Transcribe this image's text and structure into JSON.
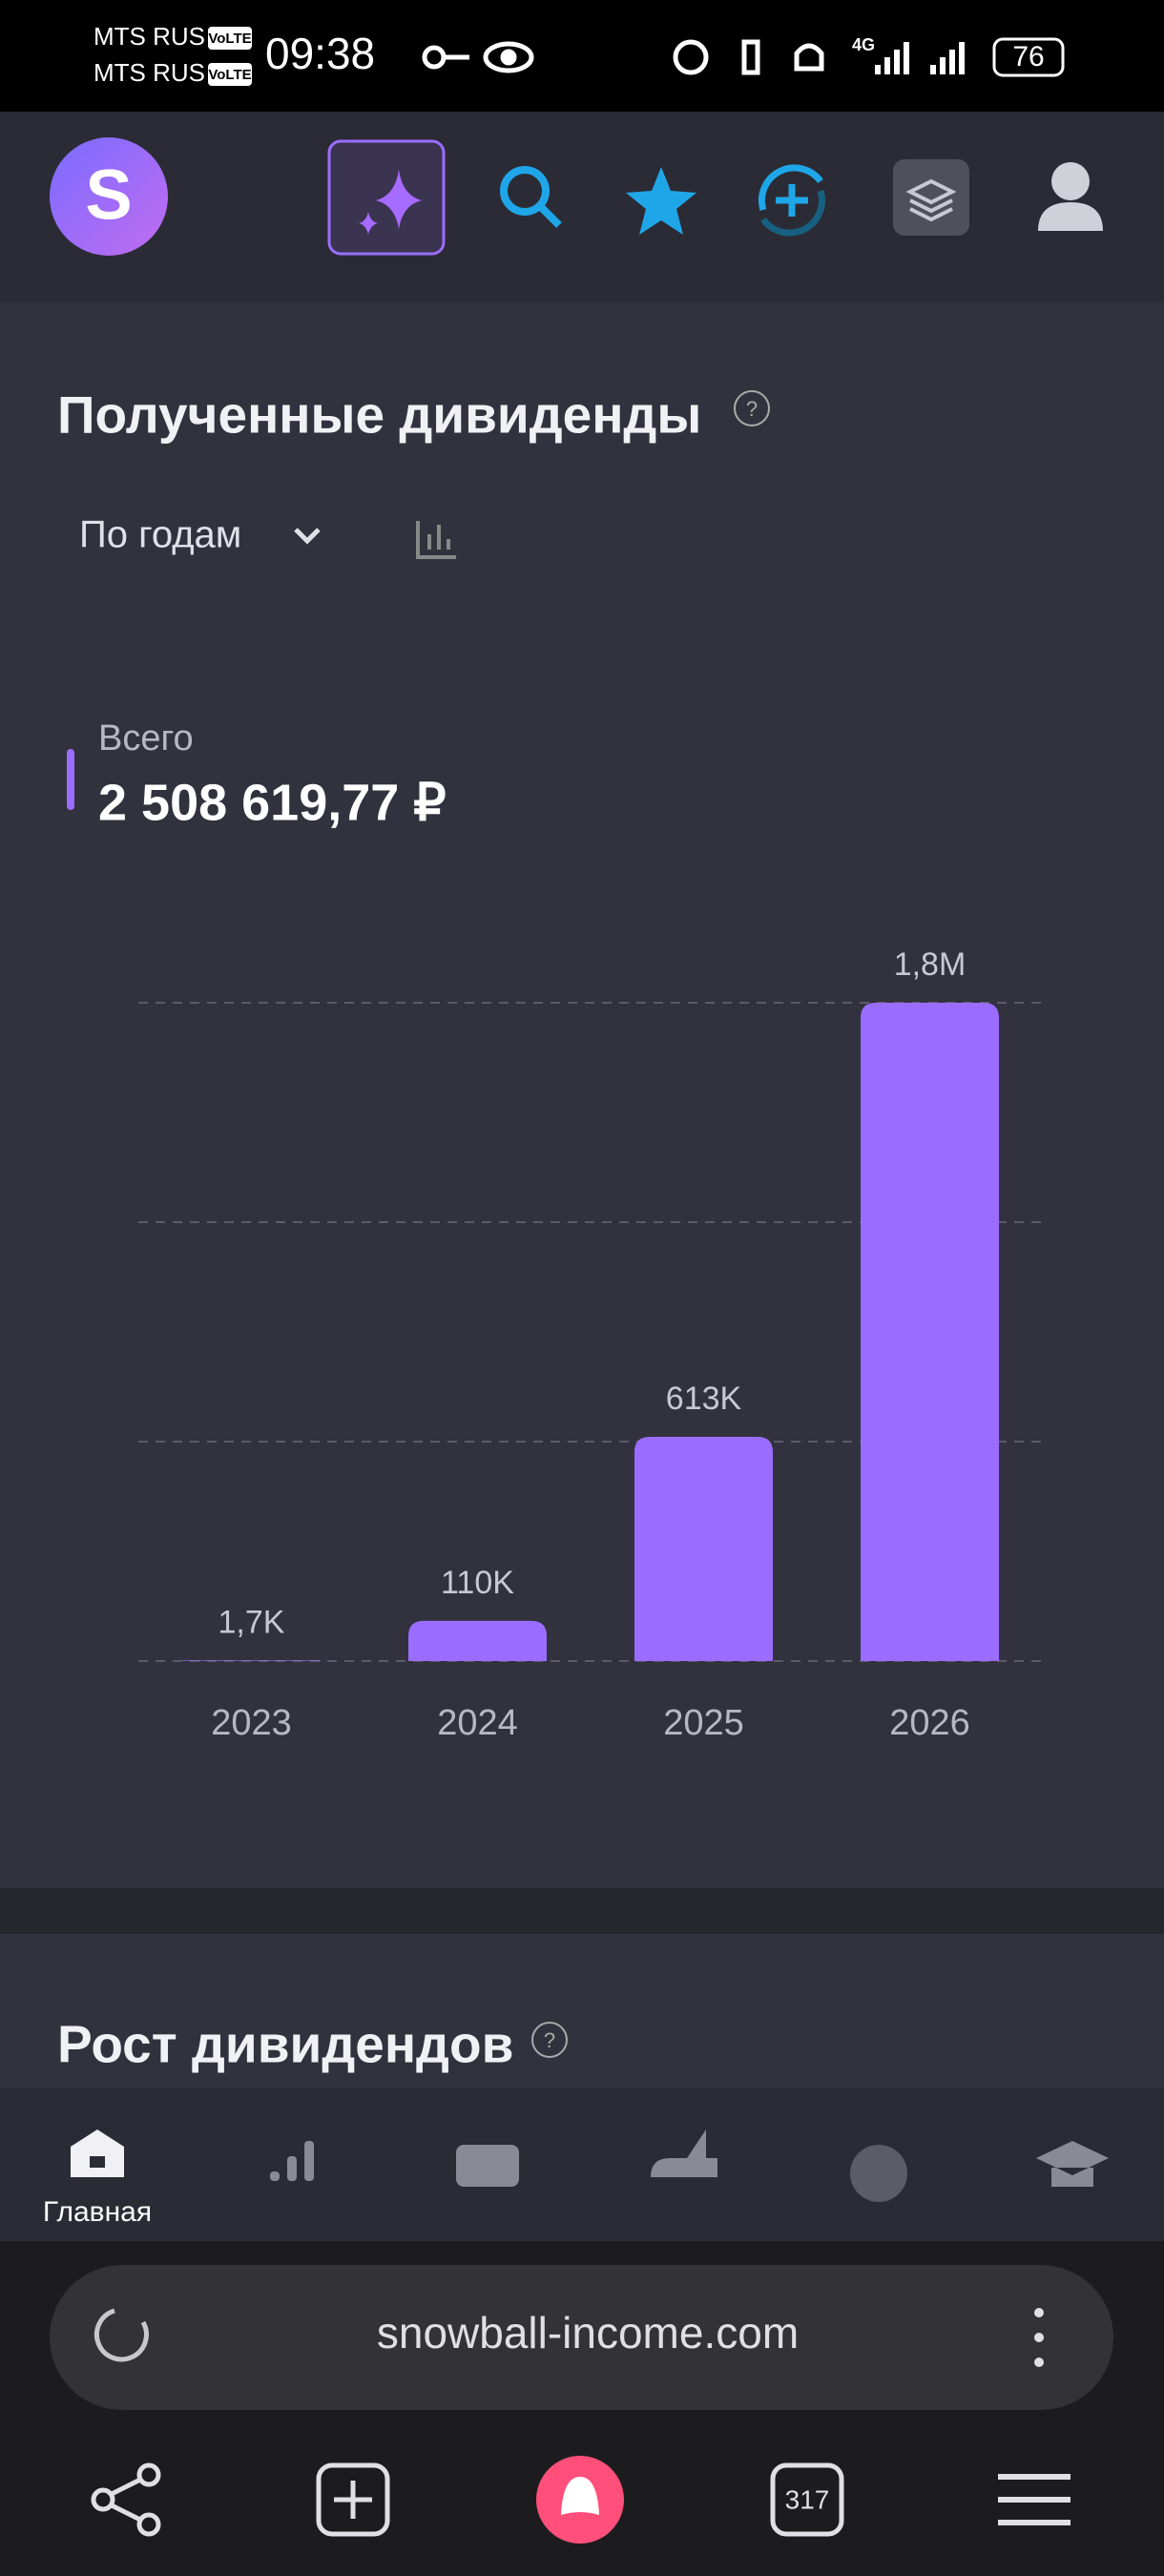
{
  "status_bar": {
    "carrier_1": "MTS RUS",
    "carrier_2": "MTS RUS",
    "volte_1": "VoLTE",
    "volte_2": "VoLTE",
    "time": "09:38",
    "network": "4G",
    "battery": "76"
  },
  "header": {
    "logo": "S"
  },
  "chart_data": {
    "type": "bar",
    "title": "Полученные дивиденды",
    "period_selector": "По годам",
    "legend_label": "Всего",
    "total": "2 508 619,77 ₽",
    "categories": [
      "2023",
      "2024",
      "2025",
      "2026"
    ],
    "values": [
      1700,
      110000,
      613000,
      1800000
    ],
    "value_labels": [
      "1,7K",
      "110K",
      "613K",
      "1,8M"
    ],
    "color": "#9b6dff",
    "ylim": [
      0,
      1800000
    ],
    "yticks": [
      0,
      600000,
      1200000,
      1800000
    ],
    "grid": true
  },
  "section_2": {
    "title": "Рост дивидендов"
  },
  "bottom_nav": {
    "active_label": "Главная"
  },
  "browser": {
    "url": "snowball-income.com",
    "tab_count": "317"
  }
}
